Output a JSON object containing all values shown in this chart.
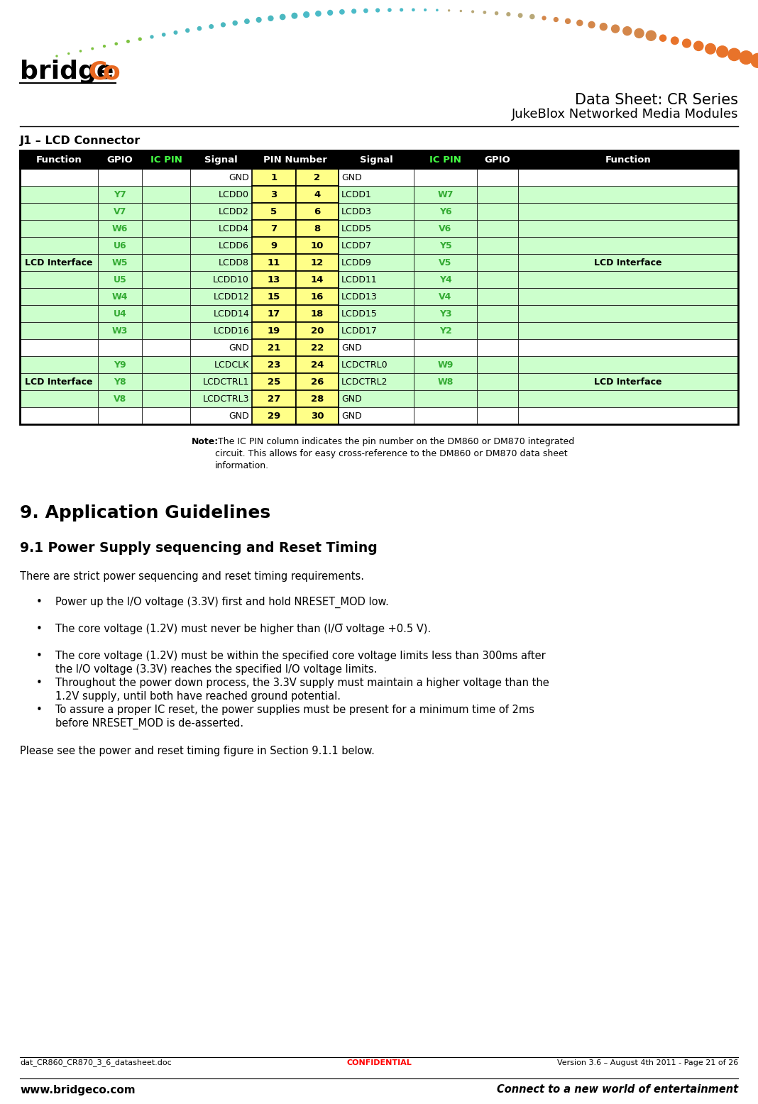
{
  "title_line1": "Data Sheet: CR Series",
  "title_line2": "JukeBlox Networked Media Modules",
  "section_title": "J1 – LCD Connector",
  "section9_title": "9. Application Guidelines",
  "section91_title": "9.1 Power Supply sequencing and Reset Timing",
  "intro_text": "There are strict power sequencing and reset timing requirements.",
  "bullets": [
    "Power up the I/O voltage (3.3V) first and hold NRESET_MOD low.",
    "The core voltage (1.2V) must never be higher than (I/O̅ voltage +0.5 V).",
    "The core voltage (1.2V) must be within the specified core voltage limits less than 300ms after\nthe I/O voltage (3.3V) reaches the specified I/O voltage limits.",
    "Throughout the power down process, the 3.3V supply must maintain a higher voltage than the\n1.2V supply, until both have reached ground potential.",
    "To assure a proper IC reset, the power supplies must be present for a minimum time of 2ms\nbefore NRESET_MOD is de-asserted."
  ],
  "footer_text": "Please see the power and reset timing figure in Section 9.1.1 below.",
  "footer_left": "dat_CR860_CR870_3_6_datasheet.doc",
  "footer_center": "CONFIDENTIAL",
  "footer_right": "Version 3.6 – August 4th 2011 - Page 21 of 26",
  "footer_website": "www.bridgeco.com",
  "footer_slogan": "Connect to a new world of entertainment",
  "green_color": "#33AA33",
  "light_green_bg": "#CCFFCC",
  "yellow_bg": "#FFFF88",
  "table_rows": [
    {
      "gpio_l": "",
      "signal_l": "GND",
      "pin1": "1",
      "pin2": "2",
      "signal_r": "GND",
      "icpin_r": "",
      "row_type": "gnd"
    },
    {
      "gpio_l": "Y7",
      "signal_l": "LCDD0",
      "pin1": "3",
      "pin2": "4",
      "signal_r": "LCDD1",
      "icpin_r": "W7",
      "row_type": "data"
    },
    {
      "gpio_l": "V7",
      "signal_l": "LCDD2",
      "pin1": "5",
      "pin2": "6",
      "signal_r": "LCDD3",
      "icpin_r": "Y6",
      "row_type": "data"
    },
    {
      "gpio_l": "W6",
      "signal_l": "LCDD4",
      "pin1": "7",
      "pin2": "8",
      "signal_r": "LCDD5",
      "icpin_r": "V6",
      "row_type": "data"
    },
    {
      "gpio_l": "U6",
      "signal_l": "LCDD6",
      "pin1": "9",
      "pin2": "10",
      "signal_r": "LCDD7",
      "icpin_r": "Y5",
      "row_type": "data"
    },
    {
      "gpio_l": "W5",
      "signal_l": "LCDD8",
      "pin1": "11",
      "pin2": "12",
      "signal_r": "LCDD9",
      "icpin_r": "V5",
      "row_type": "data"
    },
    {
      "gpio_l": "U5",
      "signal_l": "LCDD10",
      "pin1": "13",
      "pin2": "14",
      "signal_r": "LCDD11",
      "icpin_r": "Y4",
      "row_type": "data"
    },
    {
      "gpio_l": "W4",
      "signal_l": "LCDD12",
      "pin1": "15",
      "pin2": "16",
      "signal_r": "LCDD13",
      "icpin_r": "V4",
      "row_type": "data"
    },
    {
      "gpio_l": "U4",
      "signal_l": "LCDD14",
      "pin1": "17",
      "pin2": "18",
      "signal_r": "LCDD15",
      "icpin_r": "Y3",
      "row_type": "data"
    },
    {
      "gpio_l": "W3",
      "signal_l": "LCDD16",
      "pin1": "19",
      "pin2": "20",
      "signal_r": "LCDD17",
      "icpin_r": "Y2",
      "row_type": "data"
    },
    {
      "gpio_l": "",
      "signal_l": "GND",
      "pin1": "21",
      "pin2": "22",
      "signal_r": "GND",
      "icpin_r": "",
      "row_type": "gnd"
    },
    {
      "gpio_l": "Y9",
      "signal_l": "LCDCLK",
      "pin1": "23",
      "pin2": "24",
      "signal_r": "LCDCTRL0",
      "icpin_r": "W9",
      "row_type": "data"
    },
    {
      "gpio_l": "Y8",
      "signal_l": "LCDCTRL1",
      "pin1": "25",
      "pin2": "26",
      "signal_r": "LCDCTRL2",
      "icpin_r": "W8",
      "row_type": "data"
    },
    {
      "gpio_l": "V8",
      "signal_l": "LCDCTRL3",
      "pin1": "27",
      "pin2": "28",
      "signal_r": "GND",
      "icpin_r": "",
      "row_type": "data"
    },
    {
      "gpio_l": "",
      "signal_l": "GND",
      "pin1": "29",
      "pin2": "30",
      "signal_r": "GND",
      "icpin_r": "",
      "row_type": "gnd"
    }
  ],
  "func_l_group1_rows": [
    1,
    9
  ],
  "func_l_group2_rows": [
    11,
    13
  ],
  "func_l_label": "LCD Interface"
}
